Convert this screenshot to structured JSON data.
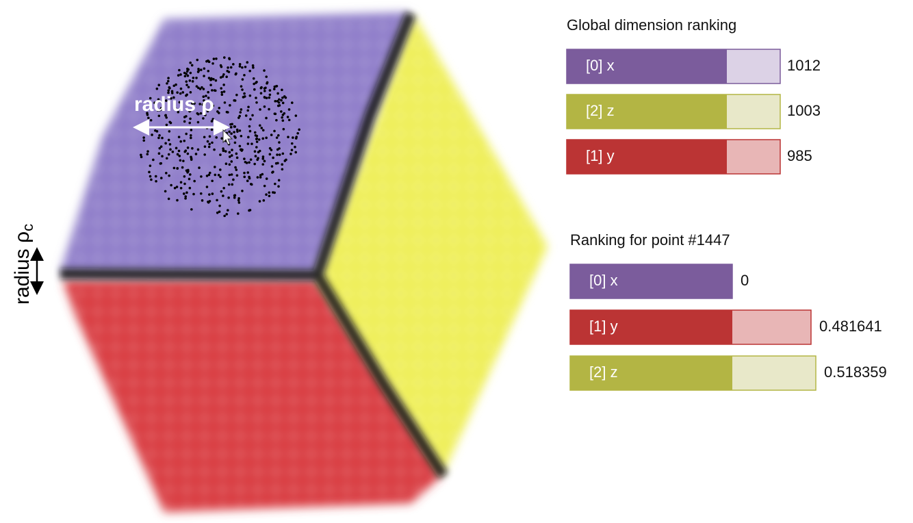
{
  "annotations": {
    "radius_rho": "radius ρ",
    "radius_rho_c": {
      "label": "radius ρ",
      "subscript": "c"
    }
  },
  "global_ranking": {
    "title": "Global dimension ranking",
    "rows": [
      {
        "label": "[0] x",
        "value": 1012
      },
      {
        "label": "[2] z",
        "value": 1003
      },
      {
        "label": "[1] y",
        "value": 985
      }
    ]
  },
  "point_ranking": {
    "title": "Ranking for point #1447",
    "rows": [
      {
        "label": "[0] x",
        "value": 0
      },
      {
        "label": "[1] y",
        "value": 0.481641
      },
      {
        "label": "[2] z",
        "value": 0.518359
      }
    ]
  }
}
